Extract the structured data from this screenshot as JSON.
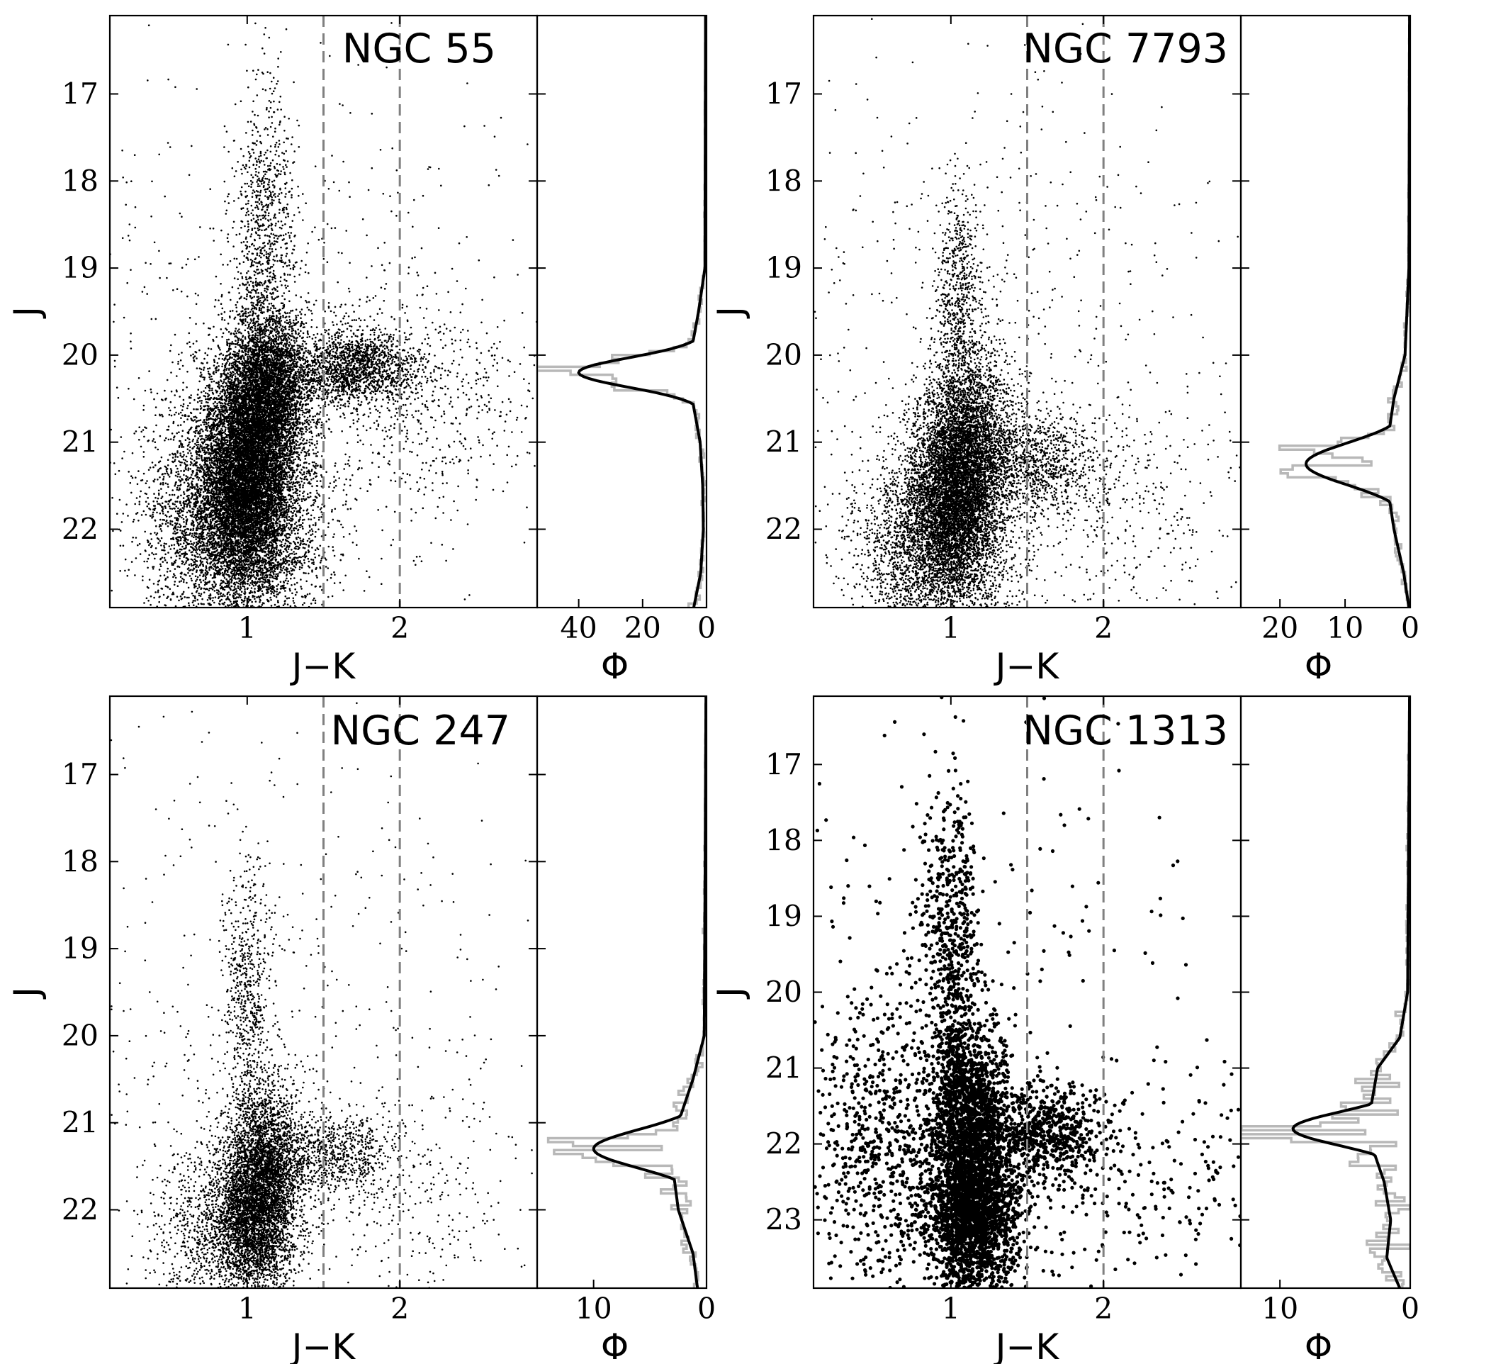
{
  "figure": {
    "panels_order": [
      "NGC 55",
      "NGC 7793",
      "NGC 247",
      "NGC 1313"
    ]
  },
  "chart_data": [
    {
      "type": "scatter",
      "title": "NGC 55",
      "xlabel": "J−K",
      "ylabel": "J",
      "xlim": [
        0.1,
        2.9
      ],
      "ylim": [
        22.9,
        16.1
      ],
      "y_inverted": true,
      "x_ticks": [
        1,
        2
      ],
      "y_ticks": [
        17,
        18,
        19,
        20,
        21,
        22
      ],
      "vertical_lines": [
        1.5,
        2.0
      ],
      "point_style": "small",
      "density_components": [
        {
          "name": "main-sequence-plume",
          "n": 5200,
          "x_mean": 0.92,
          "x_sd": 0.28,
          "y_mean": 21.9,
          "y_sd": 0.75
        },
        {
          "name": "rgb-core",
          "n": 7200,
          "x_mean": 1.0,
          "x_sd": 0.15,
          "y_mean": 21.4,
          "y_sd": 0.6
        },
        {
          "name": "agb-above-trgb",
          "n": 4200,
          "x_mean": 1.13,
          "x_sd": 0.14,
          "y_mean": 20.4,
          "y_sd": 0.45
        },
        {
          "name": "upper-plume",
          "n": 900,
          "x_mean": 1.12,
          "x_sd": 0.1,
          "y_mean": 18.6,
          "y_sd": 0.85
        },
        {
          "name": "c-star-branch",
          "n": 1700,
          "x_mean": 1.7,
          "x_sd": 0.22,
          "y_mean": 20.15,
          "y_sd": 0.22
        },
        {
          "name": "red-extension",
          "n": 450,
          "x_mean": 2.2,
          "x_sd": 0.4,
          "y_mean": 20.6,
          "y_sd": 0.6
        },
        {
          "name": "field",
          "n": 700,
          "x_mean": 1.3,
          "x_sd": 0.9,
          "y_mean": 19.8,
          "y_sd": 1.6
        }
      ],
      "lf": {
        "xlabel": "Φ",
        "xlim": [
          53,
          0
        ],
        "x_ticks": [
          40,
          20,
          0
        ],
        "peak_y": 20.2,
        "peak_sigma": 0.17,
        "peak_value": 40,
        "baseline": [
          {
            "y": 16.1,
            "v": 0.3
          },
          {
            "y": 19.0,
            "v": 0.5
          },
          {
            "y": 19.5,
            "v": 2.5
          },
          {
            "y": 20.0,
            "v": 5.0
          },
          {
            "y": 20.5,
            "v": 4.5
          },
          {
            "y": 21.0,
            "v": 2.0
          },
          {
            "y": 21.5,
            "v": 1.2
          },
          {
            "y": 22.0,
            "v": 1.0
          },
          {
            "y": 22.5,
            "v": 1.8
          },
          {
            "y": 22.9,
            "v": 4.0
          }
        ],
        "noise": 0.22
      }
    },
    {
      "type": "scatter",
      "title": "NGC 7793",
      "xlabel": "J−K",
      "ylabel": "J",
      "xlim": [
        0.1,
        2.9
      ],
      "ylim": [
        22.9,
        16.1
      ],
      "y_inverted": true,
      "x_ticks": [
        1,
        2
      ],
      "y_ticks": [
        17,
        18,
        19,
        20,
        21,
        22
      ],
      "vertical_lines": [
        1.5,
        2.0
      ],
      "point_style": "small",
      "density_components": [
        {
          "name": "main-sequence-plume",
          "n": 3200,
          "x_mean": 0.9,
          "x_sd": 0.25,
          "y_mean": 22.2,
          "y_sd": 0.55
        },
        {
          "name": "rgb-core",
          "n": 4200,
          "x_mean": 1.02,
          "x_sd": 0.14,
          "y_mean": 21.6,
          "y_sd": 0.5
        },
        {
          "name": "agb-above-trgb",
          "n": 2600,
          "x_mean": 1.12,
          "x_sd": 0.15,
          "y_mean": 20.9,
          "y_sd": 0.5
        },
        {
          "name": "upper-plume",
          "n": 700,
          "x_mean": 1.05,
          "x_sd": 0.08,
          "y_mean": 19.4,
          "y_sd": 0.65
        },
        {
          "name": "c-star-branch",
          "n": 1000,
          "x_mean": 1.55,
          "x_sd": 0.2,
          "y_mean": 21.25,
          "y_sd": 0.3
        },
        {
          "name": "red-extension",
          "n": 350,
          "x_mean": 2.1,
          "x_sd": 0.4,
          "y_mean": 21.7,
          "y_sd": 0.6
        },
        {
          "name": "field",
          "n": 600,
          "x_mean": 1.2,
          "x_sd": 0.9,
          "y_mean": 20.0,
          "y_sd": 1.8
        }
      ],
      "lf": {
        "xlabel": "Φ",
        "xlim": [
          26,
          0
        ],
        "x_ticks": [
          20,
          10,
          0
        ],
        "peak_y": 21.25,
        "peak_sigma": 0.24,
        "peak_value": 16,
        "baseline": [
          {
            "y": 16.1,
            "v": 0.1
          },
          {
            "y": 19.0,
            "v": 0.2
          },
          {
            "y": 20.0,
            "v": 0.8
          },
          {
            "y": 20.5,
            "v": 2.5
          },
          {
            "y": 21.0,
            "v": 3.5
          },
          {
            "y": 21.5,
            "v": 3.5
          },
          {
            "y": 22.0,
            "v": 2.5
          },
          {
            "y": 22.5,
            "v": 1.0
          },
          {
            "y": 22.9,
            "v": 0.2
          }
        ],
        "noise": 0.3
      }
    },
    {
      "type": "scatter",
      "title": "NGC 247",
      "xlabel": "J−K",
      "ylabel": "J",
      "xlim": [
        0.1,
        2.9
      ],
      "ylim": [
        22.9,
        16.1
      ],
      "y_inverted": true,
      "x_ticks": [
        1,
        2
      ],
      "y_ticks": [
        17,
        18,
        19,
        20,
        21,
        22
      ],
      "vertical_lines": [
        1.5,
        2.0
      ],
      "point_style": "small",
      "density_components": [
        {
          "name": "rgb-core",
          "n": 3400,
          "x_mean": 1.05,
          "x_sd": 0.14,
          "y_mean": 22.1,
          "y_sd": 0.45
        },
        {
          "name": "agb-above-trgb",
          "n": 2200,
          "x_mean": 1.13,
          "x_sd": 0.13,
          "y_mean": 21.4,
          "y_sd": 0.45
        },
        {
          "name": "upper-plume",
          "n": 650,
          "x_mean": 1.0,
          "x_sd": 0.08,
          "y_mean": 19.6,
          "y_sd": 0.8
        },
        {
          "name": "c-star-branch",
          "n": 700,
          "x_mean": 1.6,
          "x_sd": 0.2,
          "y_mean": 21.35,
          "y_sd": 0.25
        },
        {
          "name": "blue-plume",
          "n": 800,
          "x_mean": 0.75,
          "x_sd": 0.2,
          "y_mean": 22.2,
          "y_sd": 0.5
        },
        {
          "name": "red-extension",
          "n": 250,
          "x_mean": 2.1,
          "x_sd": 0.4,
          "y_mean": 21.9,
          "y_sd": 0.6
        },
        {
          "name": "field",
          "n": 500,
          "x_mean": 1.2,
          "x_sd": 0.9,
          "y_mean": 20.0,
          "y_sd": 1.8
        }
      ],
      "lf": {
        "xlabel": "Φ",
        "xlim": [
          15,
          0
        ],
        "x_ticks": [
          10,
          0
        ],
        "peak_y": 21.3,
        "peak_sigma": 0.22,
        "peak_value": 10,
        "baseline": [
          {
            "y": 16.1,
            "v": 0.05
          },
          {
            "y": 20.0,
            "v": 0.2
          },
          {
            "y": 20.5,
            "v": 1.2
          },
          {
            "y": 21.0,
            "v": 2.5
          },
          {
            "y": 21.5,
            "v": 3.0
          },
          {
            "y": 22.0,
            "v": 2.5
          },
          {
            "y": 22.5,
            "v": 1.2
          },
          {
            "y": 22.9,
            "v": 0.8
          }
        ],
        "noise": 0.3
      }
    },
    {
      "type": "scatter",
      "title": "NGC 1313",
      "xlabel": "J−K",
      "ylabel": "J",
      "xlim": [
        0.1,
        2.9
      ],
      "ylim": [
        23.9,
        16.1
      ],
      "y_inverted": true,
      "x_ticks": [
        1,
        2
      ],
      "y_ticks": [
        17,
        18,
        19,
        20,
        21,
        22,
        23
      ],
      "vertical_lines": [
        1.5,
        2.0
      ],
      "point_style": "large",
      "density_components": [
        {
          "name": "rgb-core",
          "n": 2400,
          "x_mean": 1.15,
          "x_sd": 0.15,
          "y_mean": 22.9,
          "y_sd": 0.55
        },
        {
          "name": "agb-above-trgb",
          "n": 1600,
          "x_mean": 1.12,
          "x_sd": 0.13,
          "y_mean": 21.6,
          "y_sd": 0.6
        },
        {
          "name": "upper-plume",
          "n": 550,
          "x_mean": 1.0,
          "x_sd": 0.09,
          "y_mean": 19.3,
          "y_sd": 1.0
        },
        {
          "name": "c-star-branch",
          "n": 650,
          "x_mean": 1.62,
          "x_sd": 0.2,
          "y_mean": 21.85,
          "y_sd": 0.3
        },
        {
          "name": "blue-plume",
          "n": 700,
          "x_mean": 0.55,
          "x_sd": 0.25,
          "y_mean": 22.0,
          "y_sd": 1.1
        },
        {
          "name": "red-extension",
          "n": 220,
          "x_mean": 2.2,
          "x_sd": 0.4,
          "y_mean": 22.5,
          "y_sd": 0.6
        },
        {
          "name": "field",
          "n": 250,
          "x_mean": 1.2,
          "x_sd": 0.9,
          "y_mean": 20.5,
          "y_sd": 2.0
        }
      ],
      "lf": {
        "xlabel": "Φ",
        "xlim": [
          13,
          0
        ],
        "x_ticks": [
          10,
          0
        ],
        "peak_y": 21.8,
        "peak_sigma": 0.22,
        "peak_value": 9,
        "baseline": [
          {
            "y": 16.1,
            "v": 0.05
          },
          {
            "y": 20.0,
            "v": 0.2
          },
          {
            "y": 20.6,
            "v": 0.8
          },
          {
            "y": 21.0,
            "v": 2.5
          },
          {
            "y": 21.5,
            "v": 3.0
          },
          {
            "y": 22.0,
            "v": 3.0
          },
          {
            "y": 22.5,
            "v": 2.0
          },
          {
            "y": 23.0,
            "v": 1.5
          },
          {
            "y": 23.5,
            "v": 1.8
          },
          {
            "y": 23.9,
            "v": 0.8
          }
        ],
        "noise": 0.45
      }
    }
  ]
}
